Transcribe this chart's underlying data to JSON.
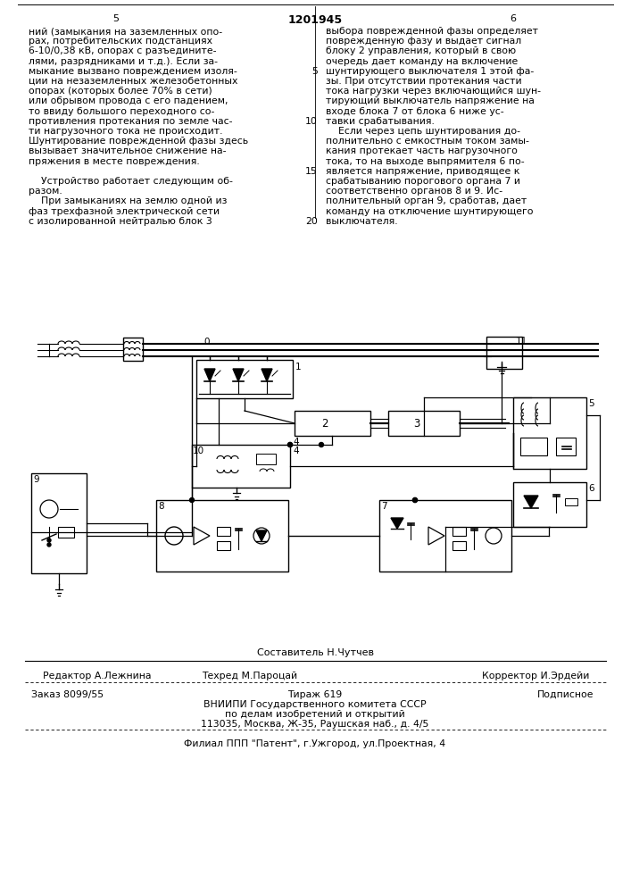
{
  "page_num_left": "5",
  "page_num_center": "1201945",
  "page_num_right": "6",
  "text_left_col": [
    "ний (замыкания на заземленных опо-",
    "рах, потребительских подстанциях",
    "6-10/0,38 кВ, опорах с разъедините-",
    "лями, разрядниками и т.д.). Если за-",
    "мыкание вызвано повреждением изоля-",
    "ции на незаземленных железобетонных",
    "опорах (которых более 70% в сети)",
    "или обрывом провода с его падением,",
    "то ввиду большого переходного со-",
    "противления протекания по земле час-",
    "ти нагрузочного тока не происходит.",
    "Шунтирование поврежденной фазы здесь",
    "вызывает значительное снижение на-",
    "пряжения в месте повреждения.",
    "",
    "    Устройство работает следующим об-",
    "разом.",
    "    При замыканиях на землю одной из",
    "фаз трехфазной электрической сети",
    "с изолированной нейтралью блок 3"
  ],
  "text_right_col": [
    "выбора поврежденной фазы определяет",
    "поврежденную фазу и выдает сигнал",
    "блоку 2 управления, который в свою",
    "очередь дает команду на включение",
    "шунтирующего выключателя 1 этой фа-",
    "зы. При отсутствии протекания части",
    "тока нагрузки через включающийся шун-",
    "тирующий выключатель напряжение на",
    "входе блока 7 от блока 6 ниже ус-",
    "тавки срабатывания.",
    "    Если через цепь шунтирования до-",
    "полнительно с емкостным током замы-",
    "кания протекает часть нагрузочного",
    "тока, то на выходе выпрямителя 6 по-",
    "является напряжение, приводящее к",
    "срабатыванию порогового органа 7 и",
    "соответственно органов 8 и 9. Ис-",
    "полнительный орган 9, сработав, дает",
    "команду на отключение шунтирующего",
    "выключателя."
  ],
  "sestavitel_line": "Составитель Н.Чутчев",
  "editor": "Редактор А.Лежнина",
  "techred": "Техред М.Пароцай",
  "corrector": "Корректор И.Эрдейи",
  "order": "Заказ 8099/55",
  "tirazh": "Тираж 619",
  "podpisnoe": "Подписное",
  "vnipi_line1": "ВНИИПИ Государственного комитета СССР",
  "vnipi_line2": "по делам изобретений и открытий",
  "vnipi_line3": "113035, Москва, Ж-35, Раушская наб., д. 4/5",
  "filial_line": "Филиал ППП \"Патент\", г.Ужгород, ул.Проектная, 4"
}
